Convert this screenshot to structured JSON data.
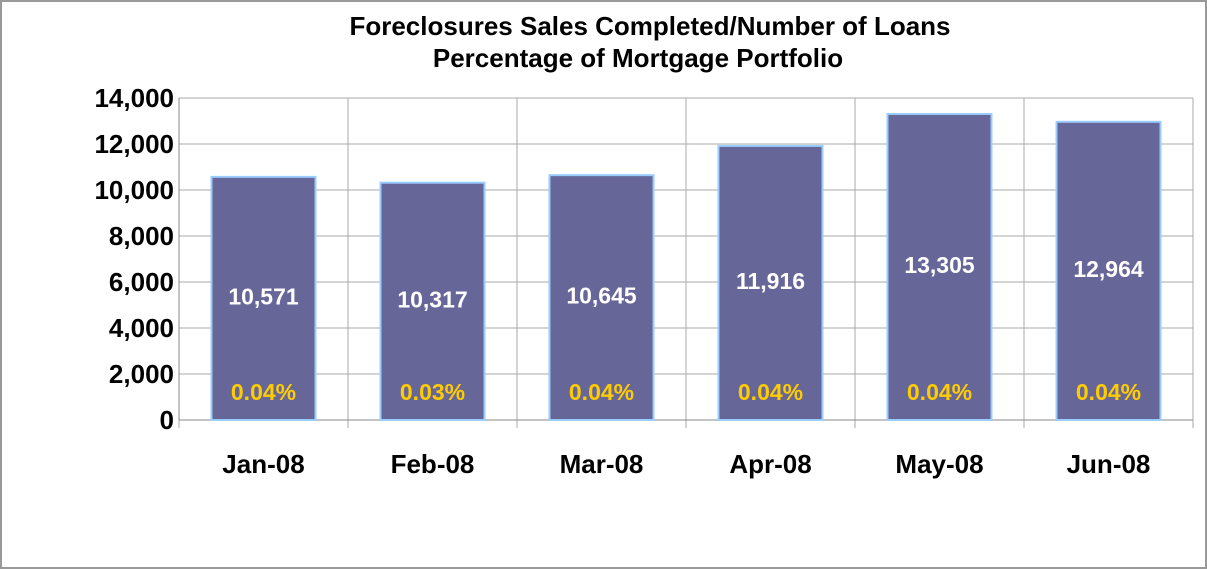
{
  "chart_data": {
    "type": "bar",
    "title": "Foreclosures Sales Completed/Number of Loans",
    "subtitle": "Percentage of Mortgage Portfolio",
    "categories": [
      "Jan-08",
      "Feb-08",
      "Mar-08",
      "Apr-08",
      "May-08",
      "Jun-08"
    ],
    "values": [
      10571,
      10317,
      10645,
      11916,
      13305,
      12964
    ],
    "value_labels": [
      "10,571",
      "10,317",
      "10,645",
      "11,916",
      "13,305",
      "12,964"
    ],
    "share_labels": [
      "0.04%",
      "0.03%",
      "0.04%",
      "0.04%",
      "0.04%",
      "0.04%"
    ],
    "color": "#666699",
    "ylim": [
      0,
      14000
    ],
    "yticks": [
      0,
      {
        "value": 2000,
        "label": "2,000"
      },
      {
        "value": 4000,
        "label": "4,000"
      },
      {
        "value": 6000,
        "label": "6,000"
      },
      {
        "value": 8000,
        "label": "8,000"
      },
      {
        "value": 10000,
        "label": "10,000"
      },
      {
        "value": 12000,
        "label": "12,000"
      },
      {
        "value": 14000,
        "label": "14,000"
      }
    ],
    "grid": true
  }
}
